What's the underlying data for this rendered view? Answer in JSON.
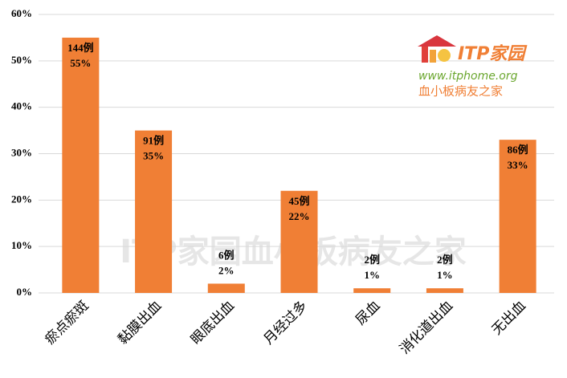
{
  "chart_data": {
    "type": "bar",
    "categories": [
      "瘀点瘀斑",
      "黏膜出血",
      "眼底出血",
      "月经过多",
      "尿血",
      "消化道出血",
      "无出血"
    ],
    "values": [
      55,
      35,
      2,
      22,
      1,
      1,
      33
    ],
    "value_labels": [
      "55%",
      "35%",
      "2%",
      "22%",
      "1%",
      "1%",
      "33%"
    ],
    "count_labels": [
      "144例",
      "91例",
      "6例",
      "45例",
      "2例",
      "2例",
      "86例"
    ],
    "color": "#f07f35",
    "ylim": [
      0,
      60
    ],
    "yticks": [
      {
        "value": 0,
        "label": "0%"
      },
      {
        "value": 10,
        "label": "10%"
      },
      {
        "value": 20,
        "label": "20%"
      },
      {
        "value": 30,
        "label": "30%"
      },
      {
        "value": 40,
        "label": "40%"
      },
      {
        "value": 50,
        "label": "50%"
      },
      {
        "value": 60,
        "label": "60%"
      }
    ],
    "grid": true,
    "logo": {
      "brand": "ITP家园",
      "url": "www.itphome.org",
      "slogan": "血小板病友之家"
    },
    "watermark": "ITP家园血小板病友之家"
  }
}
